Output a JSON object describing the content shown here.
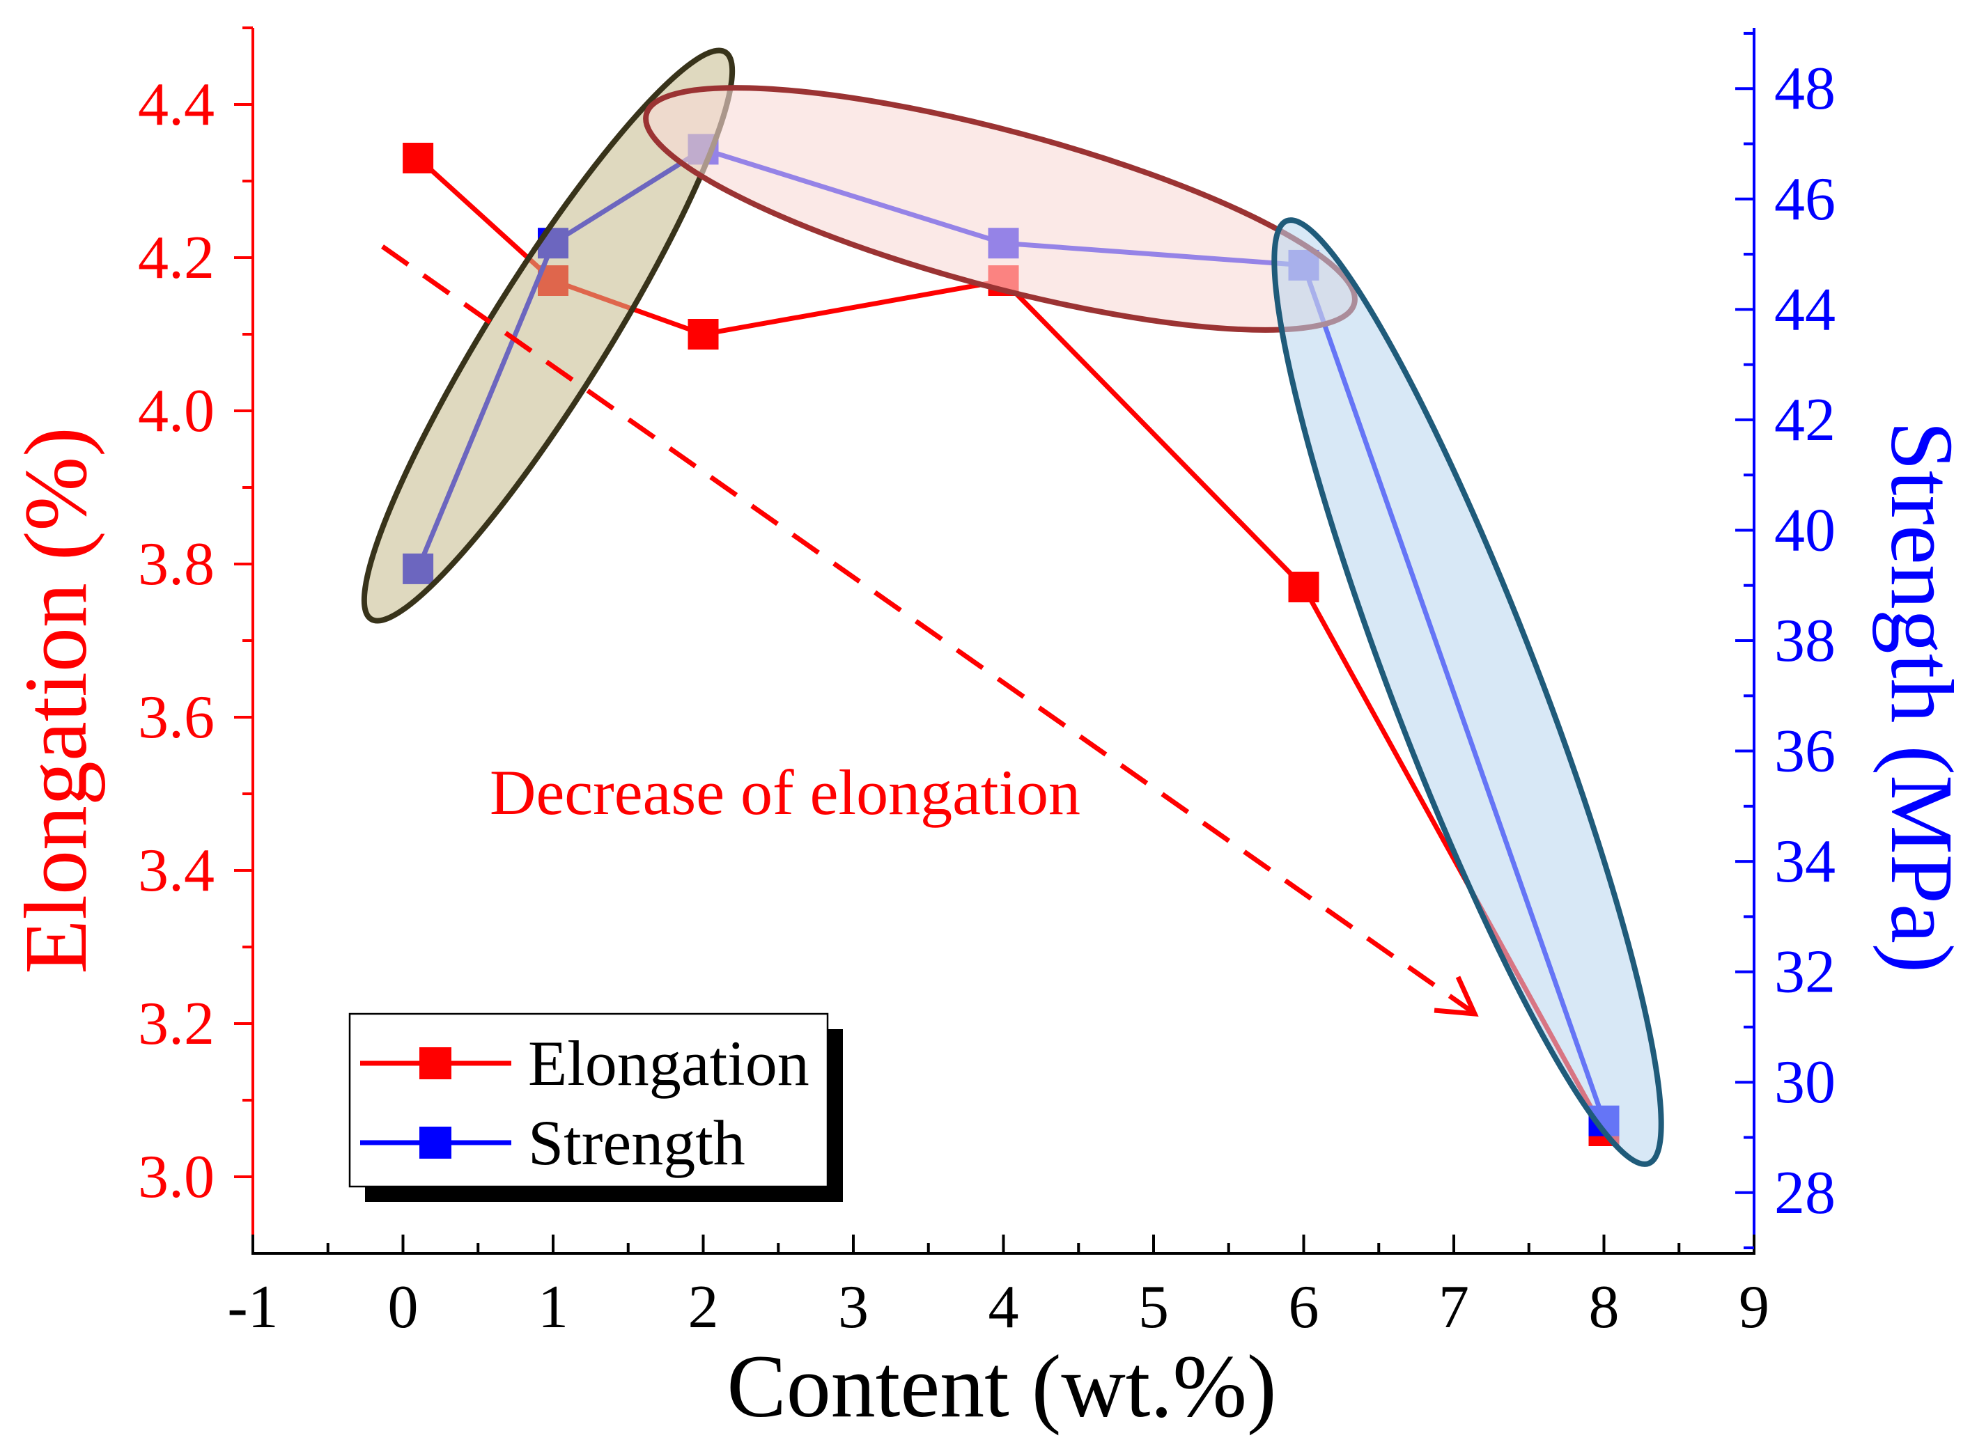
{
  "chart_data": {
    "type": "line",
    "xlabel": "Content (wt.%)",
    "ylabel": "Elongation (%)",
    "y2label": "Strength (MPa)",
    "xlim": [
      -1,
      9
    ],
    "ylim": [
      2.9,
      4.5
    ],
    "y2lim": [
      26.9,
      49.1
    ],
    "x_tick_labels": [
      "-1",
      "0",
      "1",
      "2",
      "3",
      "4",
      "5",
      "6",
      "7",
      "8",
      "9"
    ],
    "y_tick_labels": [
      "3.0",
      "3.2",
      "3.4",
      "3.6",
      "3.8",
      "4.0",
      "4.2",
      "4.4"
    ],
    "y2_tick_labels": [
      "28",
      "30",
      "32",
      "34",
      "36",
      "38",
      "40",
      "42",
      "44",
      "46",
      "48"
    ],
    "x": [
      0.1,
      1,
      2,
      4,
      6,
      8
    ],
    "series": [
      {
        "name": "Elongation",
        "y_axis": 1,
        "color": "#ff0000",
        "values": [
          4.33,
          4.17,
          4.1,
          4.17,
          3.77,
          3.06
        ]
      },
      {
        "name": "Strength",
        "y_axis": 2,
        "color": "#0000ff",
        "values": [
          39.3,
          45.2,
          46.9,
          45.2,
          44.8,
          29.3
        ]
      }
    ],
    "axis_color": "#000000",
    "grid": false,
    "legend_position": "bottom-left",
    "annotations": [
      {
        "text": "Decrease of elongation",
        "color": "#ff0000"
      }
    ],
    "highlight_groups": [
      {
        "series_index": 1,
        "x_values": [
          0.1,
          1,
          2
        ],
        "stroke": "#38331a",
        "fill": "#c4b98a"
      },
      {
        "series_index": 1,
        "x_values": [
          2,
          4,
          6
        ],
        "stroke": "#9b3333",
        "fill": "#f8dad7"
      },
      {
        "series_index": 1,
        "x_values": [
          6,
          8
        ],
        "stroke": "#1f5b7a",
        "fill": "#b8d6ee"
      }
    ]
  }
}
